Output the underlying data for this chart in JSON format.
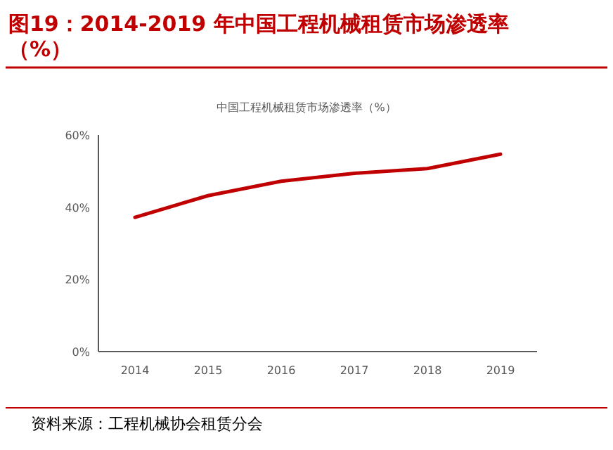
{
  "chart_data": {
    "type": "line",
    "title": "图19：2014-2019 年中国工程机械租赁市场渗透率（%）",
    "subtitle": "中国工程机械租赁市场渗透率（%）",
    "categories": [
      "2014",
      "2015",
      "2016",
      "2017",
      "2018",
      "2019"
    ],
    "series": [
      {
        "color": "#c00000",
        "values": [
          37.2,
          43.2,
          47.2,
          49.4,
          50.7,
          54.7
        ]
      }
    ],
    "ylim": [
      0,
      60
    ],
    "yticks": [
      {
        "value": 0,
        "label": "0%"
      },
      {
        "value": 20,
        "label": "20%"
      },
      {
        "value": 40,
        "label": "40%"
      },
      {
        "value": 60,
        "label": "60%"
      }
    ],
    "annotations": [
      "资料来源：工程机械协会租赁分会"
    ]
  }
}
